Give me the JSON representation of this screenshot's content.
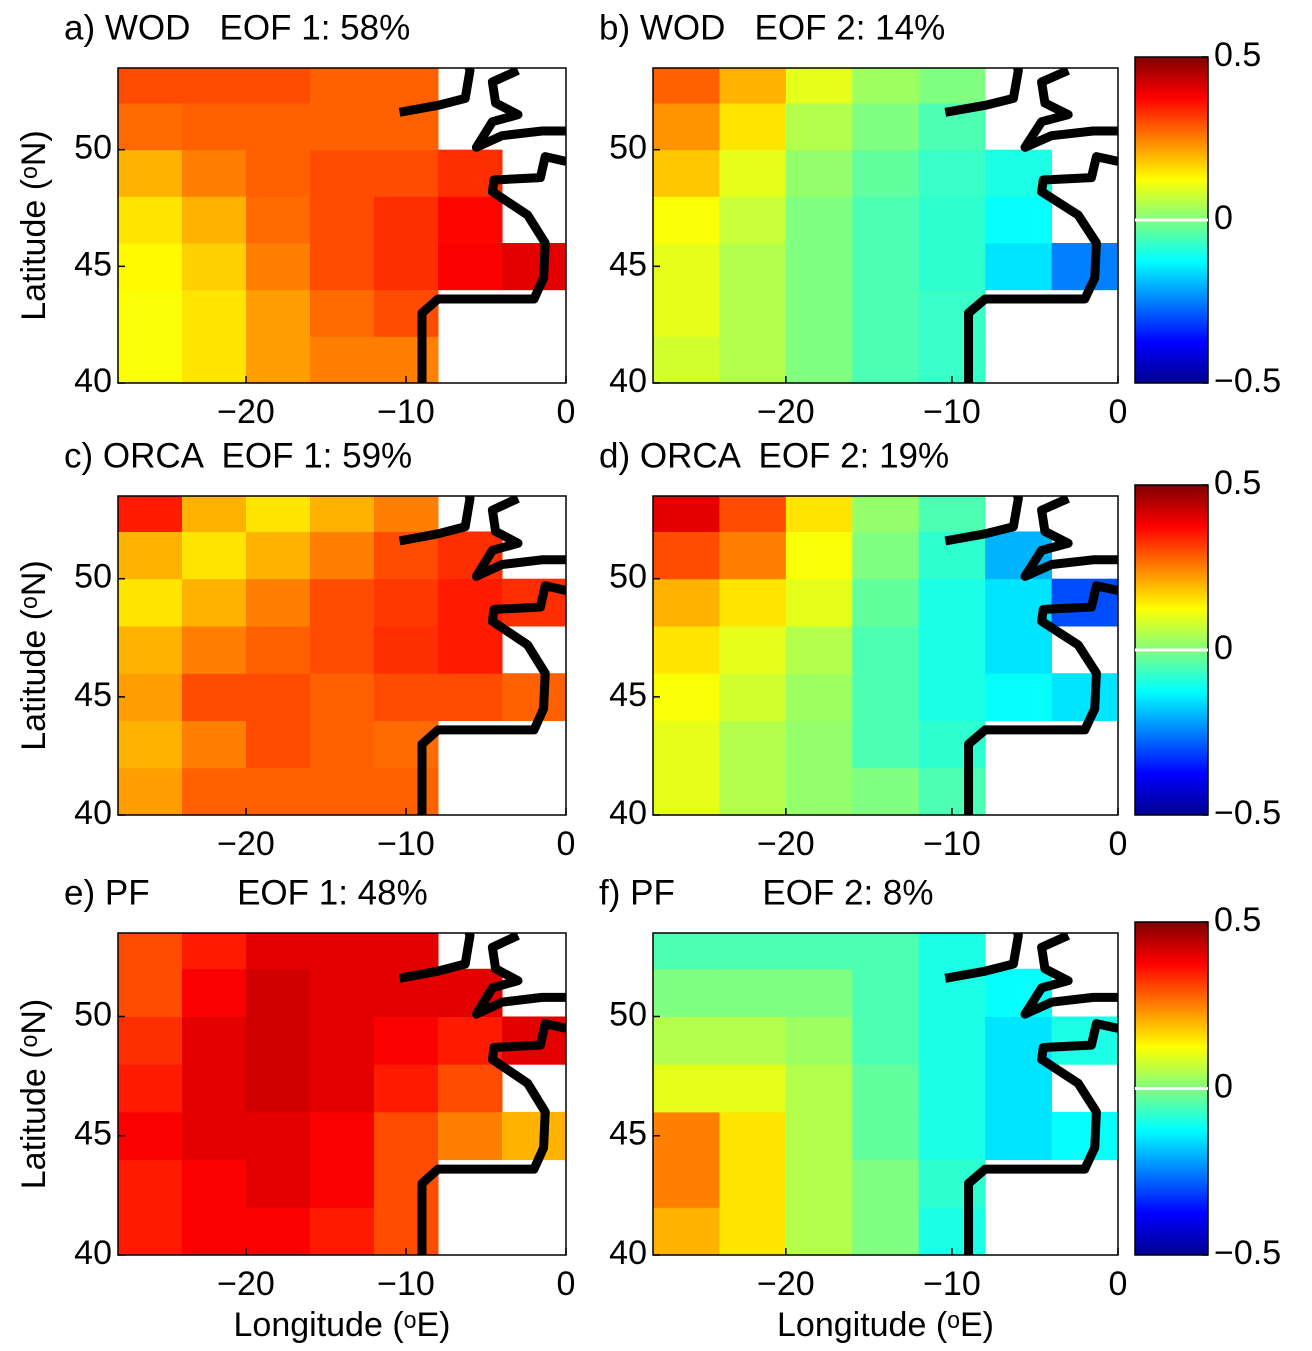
{
  "chart_data": [
    {
      "type": "heatmap",
      "title": "a) WOD   EOF 1: 58%",
      "ylabel": "Latitude (ᵒN)",
      "x": [
        -26,
        -22,
        -18,
        -14,
        -10,
        -6,
        -2
      ],
      "y": [
        41,
        43,
        45,
        47,
        49,
        51,
        53
      ],
      "values": [
        [
          0.12,
          0.15,
          0.22,
          0.25,
          0.25,
          null,
          null
        ],
        [
          0.12,
          0.15,
          0.22,
          0.27,
          0.3,
          null,
          null
        ],
        [
          0.13,
          0.17,
          0.25,
          0.3,
          0.33,
          0.38,
          0.4
        ],
        [
          0.15,
          0.2,
          0.27,
          0.3,
          0.33,
          0.37,
          null
        ],
        [
          0.2,
          0.25,
          0.28,
          0.3,
          0.3,
          0.33,
          null
        ],
        [
          0.27,
          0.28,
          0.28,
          0.28,
          0.28,
          null,
          null
        ],
        [
          0.3,
          0.3,
          0.3,
          0.28,
          0.28,
          null,
          null
        ]
      ],
      "xlim": [
        -28,
        0
      ],
      "ylim": [
        40,
        53.5
      ],
      "xticks": [
        {
          "value": -20,
          "label": "−20"
        },
        {
          "value": -10,
          "label": "−10"
        },
        0
      ],
      "yticks": [
        40,
        45,
        50
      ],
      "clim": [
        -0.5,
        0.5
      ],
      "colormap": "jet"
    },
    {
      "type": "heatmap",
      "title": "b) WOD   EOF 2: 14%",
      "x": [
        -26,
        -22,
        -18,
        -14,
        -10,
        -6,
        -2
      ],
      "y": [
        41,
        43,
        45,
        47,
        49,
        51,
        53
      ],
      "values": [
        [
          0.08,
          0.05,
          0.0,
          -0.05,
          -0.07,
          null,
          null
        ],
        [
          0.1,
          0.05,
          0.0,
          -0.05,
          -0.07,
          null,
          null
        ],
        [
          0.1,
          0.05,
          0.0,
          -0.05,
          -0.08,
          -0.15,
          -0.25
        ],
        [
          0.12,
          0.07,
          0.0,
          -0.05,
          -0.08,
          -0.12,
          null
        ],
        [
          0.18,
          0.1,
          0.02,
          -0.03,
          -0.07,
          -0.1,
          null
        ],
        [
          0.23,
          0.15,
          0.05,
          0.0,
          -0.05,
          null,
          null
        ],
        [
          0.28,
          0.2,
          0.1,
          0.03,
          0.0,
          null,
          null
        ]
      ],
      "xlim": [
        -28,
        0
      ],
      "ylim": [
        40,
        53.5
      ],
      "xticks": [
        {
          "value": -20,
          "label": "−20"
        },
        {
          "value": -10,
          "label": "−10"
        },
        0
      ],
      "yticks": [
        40,
        45,
        50
      ],
      "clim": [
        -0.5,
        0.5
      ],
      "colormap": "jet",
      "cticks": [
        {
          "value": -0.5,
          "label": "−0.5"
        },
        0,
        0.5
      ]
    },
    {
      "type": "heatmap",
      "title": "c) ORCA  EOF 1: 59%",
      "ylabel": "Latitude (ᵒN)",
      "x": [
        -26,
        -22,
        -18,
        -14,
        -10,
        -6,
        -2
      ],
      "y": [
        41,
        43,
        45,
        47,
        49,
        51,
        53
      ],
      "values": [
        [
          0.22,
          0.28,
          0.28,
          0.28,
          0.28,
          null,
          null
        ],
        [
          0.2,
          0.25,
          0.3,
          0.28,
          0.27,
          null,
          null
        ],
        [
          0.22,
          0.3,
          0.3,
          0.28,
          0.3,
          0.3,
          0.28
        ],
        [
          0.2,
          0.25,
          0.28,
          0.3,
          0.33,
          0.35,
          null
        ],
        [
          0.15,
          0.2,
          0.25,
          0.3,
          0.32,
          0.35,
          0.33
        ],
        [
          0.2,
          0.15,
          0.2,
          0.25,
          0.3,
          0.33,
          null
        ],
        [
          0.35,
          0.2,
          0.15,
          0.2,
          0.25,
          null,
          null
        ]
      ],
      "xlim": [
        -28,
        0
      ],
      "ylim": [
        40,
        53.5
      ],
      "xticks": [
        {
          "value": -20,
          "label": "−20"
        },
        {
          "value": -10,
          "label": "−10"
        },
        0
      ],
      "yticks": [
        40,
        45,
        50
      ],
      "clim": [
        -0.5,
        0.5
      ],
      "colormap": "jet"
    },
    {
      "type": "heatmap",
      "title": "d) ORCA  EOF 2: 19%",
      "x": [
        -26,
        -22,
        -18,
        -14,
        -10,
        -6,
        -2
      ],
      "y": [
        41,
        43,
        45,
        47,
        49,
        51,
        53
      ],
      "values": [
        [
          0.1,
          0.05,
          0.02,
          0.0,
          -0.05,
          null,
          null
        ],
        [
          0.1,
          0.05,
          0.02,
          -0.05,
          -0.08,
          null,
          null
        ],
        [
          0.12,
          0.08,
          0.03,
          -0.05,
          -0.1,
          -0.12,
          -0.15
        ],
        [
          0.15,
          0.1,
          0.05,
          -0.05,
          -0.1,
          -0.15,
          null
        ],
        [
          0.2,
          0.15,
          0.1,
          -0.03,
          -0.1,
          -0.15,
          -0.3
        ],
        [
          0.3,
          0.25,
          0.12,
          0.0,
          -0.08,
          -0.2,
          null
        ],
        [
          0.4,
          0.3,
          0.15,
          0.02,
          -0.05,
          null,
          null
        ]
      ],
      "xlim": [
        -28,
        0
      ],
      "ylim": [
        40,
        53.5
      ],
      "xticks": [
        {
          "value": -20,
          "label": "−20"
        },
        {
          "value": -10,
          "label": "−10"
        },
        0
      ],
      "yticks": [
        40,
        45,
        50
      ],
      "clim": [
        -0.5,
        0.5
      ],
      "colormap": "jet",
      "cticks": [
        {
          "value": -0.5,
          "label": "−0.5"
        },
        0,
        0.5
      ]
    },
    {
      "type": "heatmap",
      "title": "e) PF         EOF 1: 48%",
      "ylabel": "Latitude (ᵒN)",
      "xlabel": "Longitude (ᵒE)",
      "x": [
        -26,
        -22,
        -18,
        -14,
        -10,
        -6,
        -2
      ],
      "y": [
        41,
        43,
        45,
        47,
        49,
        51,
        53
      ],
      "values": [
        [
          0.35,
          0.38,
          0.38,
          0.35,
          0.3,
          null,
          null
        ],
        [
          0.35,
          0.38,
          0.4,
          0.38,
          0.3,
          null,
          null
        ],
        [
          0.38,
          0.4,
          0.4,
          0.38,
          0.3,
          0.25,
          0.2
        ],
        [
          0.35,
          0.4,
          0.42,
          0.4,
          0.35,
          0.3,
          null
        ],
        [
          0.33,
          0.4,
          0.42,
          0.4,
          0.38,
          0.35,
          0.4
        ],
        [
          0.3,
          0.38,
          0.42,
          0.4,
          0.4,
          0.4,
          null
        ],
        [
          0.3,
          0.35,
          0.4,
          0.4,
          0.4,
          null,
          null
        ]
      ],
      "xlim": [
        -28,
        0
      ],
      "ylim": [
        40,
        53.5
      ],
      "xticks": [
        {
          "value": -20,
          "label": "−20"
        },
        {
          "value": -10,
          "label": "−10"
        },
        0
      ],
      "yticks": [
        40,
        45,
        50
      ],
      "clim": [
        -0.5,
        0.5
      ],
      "colormap": "jet"
    },
    {
      "type": "heatmap",
      "title": "f) PF         EOF 2: 8%",
      "xlabel": "Longitude (ᵒE)",
      "x": [
        -26,
        -22,
        -18,
        -14,
        -10,
        -6,
        -2
      ],
      "y": [
        41,
        43,
        45,
        47,
        49,
        51,
        53
      ],
      "values": [
        [
          0.2,
          0.15,
          0.05,
          0.0,
          -0.1,
          null,
          null
        ],
        [
          0.25,
          0.15,
          0.05,
          0.0,
          -0.08,
          null,
          null
        ],
        [
          0.25,
          0.15,
          0.05,
          -0.03,
          -0.1,
          -0.15,
          -0.12
        ],
        [
          0.1,
          0.1,
          0.05,
          -0.03,
          -0.1,
          -0.15,
          null
        ],
        [
          0.05,
          0.05,
          0.03,
          -0.05,
          -0.1,
          -0.15,
          -0.1
        ],
        [
          0.0,
          0.0,
          0.0,
          -0.05,
          -0.1,
          -0.12,
          null
        ],
        [
          -0.05,
          -0.05,
          -0.05,
          -0.05,
          -0.1,
          null,
          null
        ]
      ],
      "xlim": [
        -28,
        0
      ],
      "ylim": [
        40,
        53.5
      ],
      "xticks": [
        {
          "value": -20,
          "label": "−20"
        },
        {
          "value": -10,
          "label": "−10"
        },
        0
      ],
      "yticks": [
        40,
        45,
        50
      ],
      "clim": [
        -0.5,
        0.5
      ],
      "colormap": "jet",
      "cticks": [
        {
          "value": -0.5,
          "label": "−0.5"
        },
        0,
        0.5
      ]
    }
  ]
}
